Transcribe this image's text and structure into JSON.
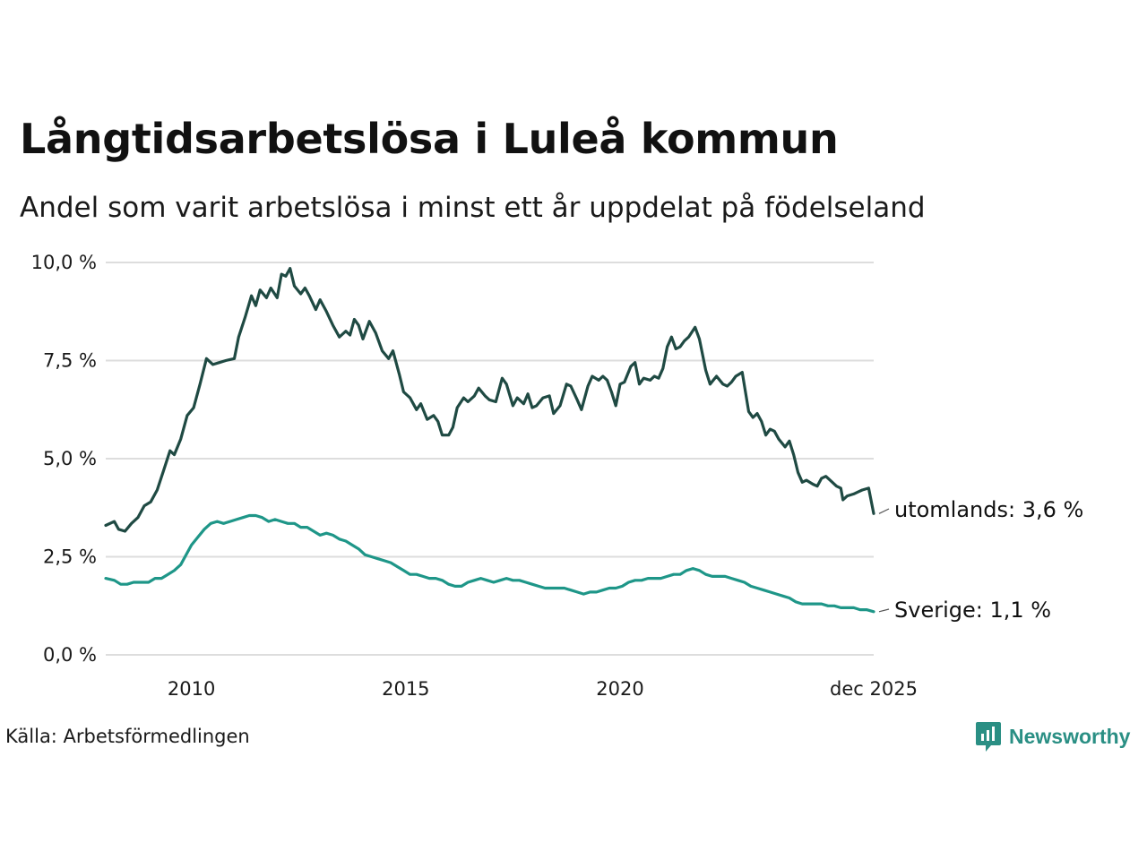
{
  "title": "Långtidsarbetslösa i Luleå kommun",
  "subtitle": "Andel som varit arbetslösa i minst ett år uppdelat på födelseland",
  "source": "Källa: Arbetsförmedlingen",
  "logo_text": "Newsworthy",
  "colors": {
    "utomlands": "#1f4a43",
    "sverige": "#1e9688",
    "grid": "#dddddd",
    "logo": "#2a8f84"
  },
  "chart_data": {
    "type": "line",
    "title": "Långtidsarbetslösa i Luleå kommun",
    "xlabel": "",
    "ylabel": "",
    "xlim": [
      2008.0,
      2025.917
    ],
    "ylim": [
      0,
      10
    ],
    "y_ticks": [
      {
        "value": 0,
        "label": "0,0 %"
      },
      {
        "value": 2.5,
        "label": "2,5 %"
      },
      {
        "value": 5,
        "label": "5,0 %"
      },
      {
        "value": 7.5,
        "label": "7,5 %"
      },
      {
        "value": 10,
        "label": "10,0 %"
      }
    ],
    "x_ticks": [
      {
        "value": 2010,
        "label": "2010"
      },
      {
        "value": 2015,
        "label": "2015"
      },
      {
        "value": 2020,
        "label": "2020"
      },
      {
        "value": 2025.917,
        "label": "dec 2025"
      }
    ],
    "grid": true,
    "series": [
      {
        "name": "utomlands",
        "end_label": "utomlands: 3,6 %",
        "points": [
          [
            2008.0,
            3.3
          ],
          [
            2008.2,
            3.4
          ],
          [
            2008.3,
            3.2
          ],
          [
            2008.45,
            3.15
          ],
          [
            2008.6,
            3.35
          ],
          [
            2008.75,
            3.5
          ],
          [
            2008.9,
            3.8
          ],
          [
            2009.05,
            3.9
          ],
          [
            2009.2,
            4.2
          ],
          [
            2009.35,
            4.7
          ],
          [
            2009.5,
            5.2
          ],
          [
            2009.6,
            5.1
          ],
          [
            2009.75,
            5.5
          ],
          [
            2009.9,
            6.1
          ],
          [
            2010.05,
            6.3
          ],
          [
            2010.2,
            6.9
          ],
          [
            2010.35,
            7.55
          ],
          [
            2010.5,
            7.4
          ],
          [
            2010.65,
            7.45
          ],
          [
            2010.8,
            7.5
          ],
          [
            2011.0,
            7.55
          ],
          [
            2011.1,
            8.1
          ],
          [
            2011.25,
            8.6
          ],
          [
            2011.4,
            9.15
          ],
          [
            2011.5,
            8.9
          ],
          [
            2011.6,
            9.3
          ],
          [
            2011.75,
            9.1
          ],
          [
            2011.85,
            9.35
          ],
          [
            2012.0,
            9.1
          ],
          [
            2012.1,
            9.7
          ],
          [
            2012.2,
            9.65
          ],
          [
            2012.3,
            9.85
          ],
          [
            2012.4,
            9.4
          ],
          [
            2012.55,
            9.2
          ],
          [
            2012.65,
            9.35
          ],
          [
            2012.75,
            9.15
          ],
          [
            2012.9,
            8.8
          ],
          [
            2013.0,
            9.05
          ],
          [
            2013.15,
            8.75
          ],
          [
            2013.3,
            8.4
          ],
          [
            2013.45,
            8.1
          ],
          [
            2013.6,
            8.25
          ],
          [
            2013.7,
            8.15
          ],
          [
            2013.8,
            8.55
          ],
          [
            2013.9,
            8.4
          ],
          [
            2014.0,
            8.05
          ],
          [
            2014.15,
            8.5
          ],
          [
            2014.3,
            8.2
          ],
          [
            2014.45,
            7.75
          ],
          [
            2014.6,
            7.55
          ],
          [
            2014.7,
            7.75
          ],
          [
            2014.85,
            7.15
          ],
          [
            2014.95,
            6.7
          ],
          [
            2015.1,
            6.55
          ],
          [
            2015.25,
            6.25
          ],
          [
            2015.35,
            6.4
          ],
          [
            2015.5,
            6.0
          ],
          [
            2015.65,
            6.1
          ],
          [
            2015.75,
            5.95
          ],
          [
            2015.85,
            5.6
          ],
          [
            2016.0,
            5.6
          ],
          [
            2016.1,
            5.8
          ],
          [
            2016.2,
            6.3
          ],
          [
            2016.35,
            6.55
          ],
          [
            2016.45,
            6.45
          ],
          [
            2016.6,
            6.6
          ],
          [
            2016.7,
            6.8
          ],
          [
            2016.85,
            6.6
          ],
          [
            2016.95,
            6.5
          ],
          [
            2017.1,
            6.45
          ],
          [
            2017.25,
            7.05
          ],
          [
            2017.35,
            6.9
          ],
          [
            2017.5,
            6.35
          ],
          [
            2017.6,
            6.55
          ],
          [
            2017.75,
            6.4
          ],
          [
            2017.85,
            6.65
          ],
          [
            2017.95,
            6.3
          ],
          [
            2018.05,
            6.35
          ],
          [
            2018.2,
            6.55
          ],
          [
            2018.35,
            6.6
          ],
          [
            2018.45,
            6.15
          ],
          [
            2018.6,
            6.35
          ],
          [
            2018.75,
            6.9
          ],
          [
            2018.85,
            6.85
          ],
          [
            2019.0,
            6.5
          ],
          [
            2019.1,
            6.25
          ],
          [
            2019.25,
            6.85
          ],
          [
            2019.35,
            7.1
          ],
          [
            2019.5,
            7.0
          ],
          [
            2019.6,
            7.1
          ],
          [
            2019.7,
            7.0
          ],
          [
            2019.8,
            6.7
          ],
          [
            2019.9,
            6.35
          ],
          [
            2020.0,
            6.9
          ],
          [
            2020.1,
            6.95
          ],
          [
            2020.25,
            7.35
          ],
          [
            2020.35,
            7.45
          ],
          [
            2020.45,
            6.9
          ],
          [
            2020.55,
            7.05
          ],
          [
            2020.7,
            7.0
          ],
          [
            2020.8,
            7.1
          ],
          [
            2020.9,
            7.05
          ],
          [
            2021.0,
            7.3
          ],
          [
            2021.1,
            7.85
          ],
          [
            2021.2,
            8.1
          ],
          [
            2021.3,
            7.8
          ],
          [
            2021.4,
            7.85
          ],
          [
            2021.5,
            8.0
          ],
          [
            2021.6,
            8.1
          ],
          [
            2021.75,
            8.35
          ],
          [
            2021.85,
            8.05
          ],
          [
            2022.0,
            7.25
          ],
          [
            2022.1,
            6.9
          ],
          [
            2022.25,
            7.1
          ],
          [
            2022.4,
            6.9
          ],
          [
            2022.5,
            6.85
          ],
          [
            2022.6,
            6.95
          ],
          [
            2022.7,
            7.1
          ],
          [
            2022.85,
            7.2
          ],
          [
            2023.0,
            6.2
          ],
          [
            2023.1,
            6.05
          ],
          [
            2023.2,
            6.15
          ],
          [
            2023.3,
            5.95
          ],
          [
            2023.4,
            5.6
          ],
          [
            2023.5,
            5.75
          ],
          [
            2023.6,
            5.7
          ],
          [
            2023.7,
            5.5
          ],
          [
            2023.85,
            5.3
          ],
          [
            2023.95,
            5.45
          ],
          [
            2024.05,
            5.1
          ],
          [
            2024.15,
            4.65
          ],
          [
            2024.25,
            4.4
          ],
          [
            2024.35,
            4.45
          ],
          [
            2024.5,
            4.35
          ],
          [
            2024.6,
            4.3
          ],
          [
            2024.7,
            4.5
          ],
          [
            2024.8,
            4.55
          ],
          [
            2024.9,
            4.45
          ],
          [
            2025.05,
            4.3
          ],
          [
            2025.15,
            4.25
          ],
          [
            2025.2,
            3.95
          ],
          [
            2025.3,
            4.05
          ],
          [
            2025.45,
            4.1
          ],
          [
            2025.55,
            4.15
          ],
          [
            2025.65,
            4.2
          ],
          [
            2025.8,
            4.25
          ],
          [
            2025.917,
            3.6
          ]
        ]
      },
      {
        "name": "Sverige",
        "end_label": "Sverige: 1,1 %",
        "points": [
          [
            2008.0,
            1.95
          ],
          [
            2008.2,
            1.9
          ],
          [
            2008.35,
            1.8
          ],
          [
            2008.5,
            1.8
          ],
          [
            2008.65,
            1.85
          ],
          [
            2008.8,
            1.85
          ],
          [
            2009.0,
            1.85
          ],
          [
            2009.15,
            1.95
          ],
          [
            2009.3,
            1.95
          ],
          [
            2009.45,
            2.05
          ],
          [
            2009.6,
            2.15
          ],
          [
            2009.75,
            2.3
          ],
          [
            2009.9,
            2.6
          ],
          [
            2010.0,
            2.8
          ],
          [
            2010.15,
            3.0
          ],
          [
            2010.3,
            3.2
          ],
          [
            2010.45,
            3.35
          ],
          [
            2010.6,
            3.4
          ],
          [
            2010.75,
            3.35
          ],
          [
            2010.9,
            3.4
          ],
          [
            2011.05,
            3.45
          ],
          [
            2011.2,
            3.5
          ],
          [
            2011.35,
            3.55
          ],
          [
            2011.5,
            3.55
          ],
          [
            2011.65,
            3.5
          ],
          [
            2011.8,
            3.4
          ],
          [
            2011.95,
            3.45
          ],
          [
            2012.1,
            3.4
          ],
          [
            2012.25,
            3.35
          ],
          [
            2012.4,
            3.35
          ],
          [
            2012.55,
            3.25
          ],
          [
            2012.7,
            3.25
          ],
          [
            2012.85,
            3.15
          ],
          [
            2013.0,
            3.05
          ],
          [
            2013.15,
            3.1
          ],
          [
            2013.3,
            3.05
          ],
          [
            2013.45,
            2.95
          ],
          [
            2013.6,
            2.9
          ],
          [
            2013.75,
            2.8
          ],
          [
            2013.9,
            2.7
          ],
          [
            2014.05,
            2.55
          ],
          [
            2014.2,
            2.5
          ],
          [
            2014.35,
            2.45
          ],
          [
            2014.5,
            2.4
          ],
          [
            2014.65,
            2.35
          ],
          [
            2014.8,
            2.25
          ],
          [
            2014.95,
            2.15
          ],
          [
            2015.1,
            2.05
          ],
          [
            2015.25,
            2.05
          ],
          [
            2015.4,
            2.0
          ],
          [
            2015.55,
            1.95
          ],
          [
            2015.7,
            1.95
          ],
          [
            2015.85,
            1.9
          ],
          [
            2016.0,
            1.8
          ],
          [
            2016.15,
            1.75
          ],
          [
            2016.3,
            1.75
          ],
          [
            2016.45,
            1.85
          ],
          [
            2016.6,
            1.9
          ],
          [
            2016.75,
            1.95
          ],
          [
            2016.9,
            1.9
          ],
          [
            2017.05,
            1.85
          ],
          [
            2017.2,
            1.9
          ],
          [
            2017.35,
            1.95
          ],
          [
            2017.5,
            1.9
          ],
          [
            2017.65,
            1.9
          ],
          [
            2017.8,
            1.85
          ],
          [
            2017.95,
            1.8
          ],
          [
            2018.1,
            1.75
          ],
          [
            2018.25,
            1.7
          ],
          [
            2018.4,
            1.7
          ],
          [
            2018.55,
            1.7
          ],
          [
            2018.7,
            1.7
          ],
          [
            2018.85,
            1.65
          ],
          [
            2019.0,
            1.6
          ],
          [
            2019.15,
            1.55
          ],
          [
            2019.3,
            1.6
          ],
          [
            2019.45,
            1.6
          ],
          [
            2019.6,
            1.65
          ],
          [
            2019.75,
            1.7
          ],
          [
            2019.9,
            1.7
          ],
          [
            2020.05,
            1.75
          ],
          [
            2020.2,
            1.85
          ],
          [
            2020.35,
            1.9
          ],
          [
            2020.5,
            1.9
          ],
          [
            2020.65,
            1.95
          ],
          [
            2020.8,
            1.95
          ],
          [
            2020.95,
            1.95
          ],
          [
            2021.1,
            2.0
          ],
          [
            2021.25,
            2.05
          ],
          [
            2021.4,
            2.05
          ],
          [
            2021.55,
            2.15
          ],
          [
            2021.7,
            2.2
          ],
          [
            2021.85,
            2.15
          ],
          [
            2022.0,
            2.05
          ],
          [
            2022.15,
            2.0
          ],
          [
            2022.3,
            2.0
          ],
          [
            2022.45,
            2.0
          ],
          [
            2022.6,
            1.95
          ],
          [
            2022.75,
            1.9
          ],
          [
            2022.9,
            1.85
          ],
          [
            2023.05,
            1.75
          ],
          [
            2023.2,
            1.7
          ],
          [
            2023.35,
            1.65
          ],
          [
            2023.5,
            1.6
          ],
          [
            2023.65,
            1.55
          ],
          [
            2023.8,
            1.5
          ],
          [
            2023.95,
            1.45
          ],
          [
            2024.1,
            1.35
          ],
          [
            2024.25,
            1.3
          ],
          [
            2024.4,
            1.3
          ],
          [
            2024.55,
            1.3
          ],
          [
            2024.7,
            1.3
          ],
          [
            2024.85,
            1.25
          ],
          [
            2025.0,
            1.25
          ],
          [
            2025.15,
            1.2
          ],
          [
            2025.3,
            1.2
          ],
          [
            2025.45,
            1.2
          ],
          [
            2025.6,
            1.15
          ],
          [
            2025.75,
            1.15
          ],
          [
            2025.917,
            1.1
          ]
        ]
      }
    ]
  }
}
